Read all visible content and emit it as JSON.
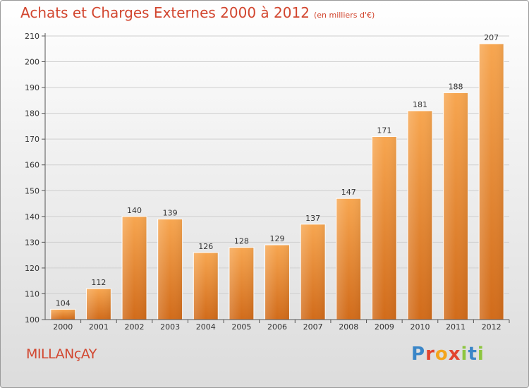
{
  "header": {
    "title": "Achats et Charges Externes 2000 à 2012",
    "unit": "(en milliers d'€)"
  },
  "place": "MILLANçAY",
  "logo": {
    "text": "Proxiti",
    "letters": [
      {
        "ch": "P",
        "color": "#3a86c8"
      },
      {
        "ch": "r",
        "color": "#e2442f"
      },
      {
        "ch": "o",
        "color": "#f4a41c"
      },
      {
        "ch": "x",
        "color": "#e2442f"
      },
      {
        "ch": "i",
        "color": "#8dc63f"
      },
      {
        "ch": "t",
        "color": "#3a86c8"
      },
      {
        "ch": "i",
        "color": "#8dc63f"
      }
    ]
  },
  "colors": {
    "title": "#d2462f",
    "bar_light": "#f7a650",
    "bar_dark": "#d16b1a",
    "grid": "#cfcfcf"
  },
  "chart_data": {
    "type": "bar",
    "categories": [
      "2000",
      "2001",
      "2002",
      "2003",
      "2004",
      "2005",
      "2006",
      "2007",
      "2008",
      "2009",
      "2010",
      "2011",
      "2012"
    ],
    "values": [
      104,
      112,
      140,
      139,
      126,
      128,
      129,
      137,
      147,
      171,
      181,
      188,
      207
    ],
    "ylim": [
      100,
      210
    ],
    "yticks": [
      100,
      110,
      120,
      130,
      140,
      150,
      160,
      170,
      180,
      190,
      200,
      210
    ],
    "grid": true,
    "xlabel": "",
    "ylabel": ""
  }
}
